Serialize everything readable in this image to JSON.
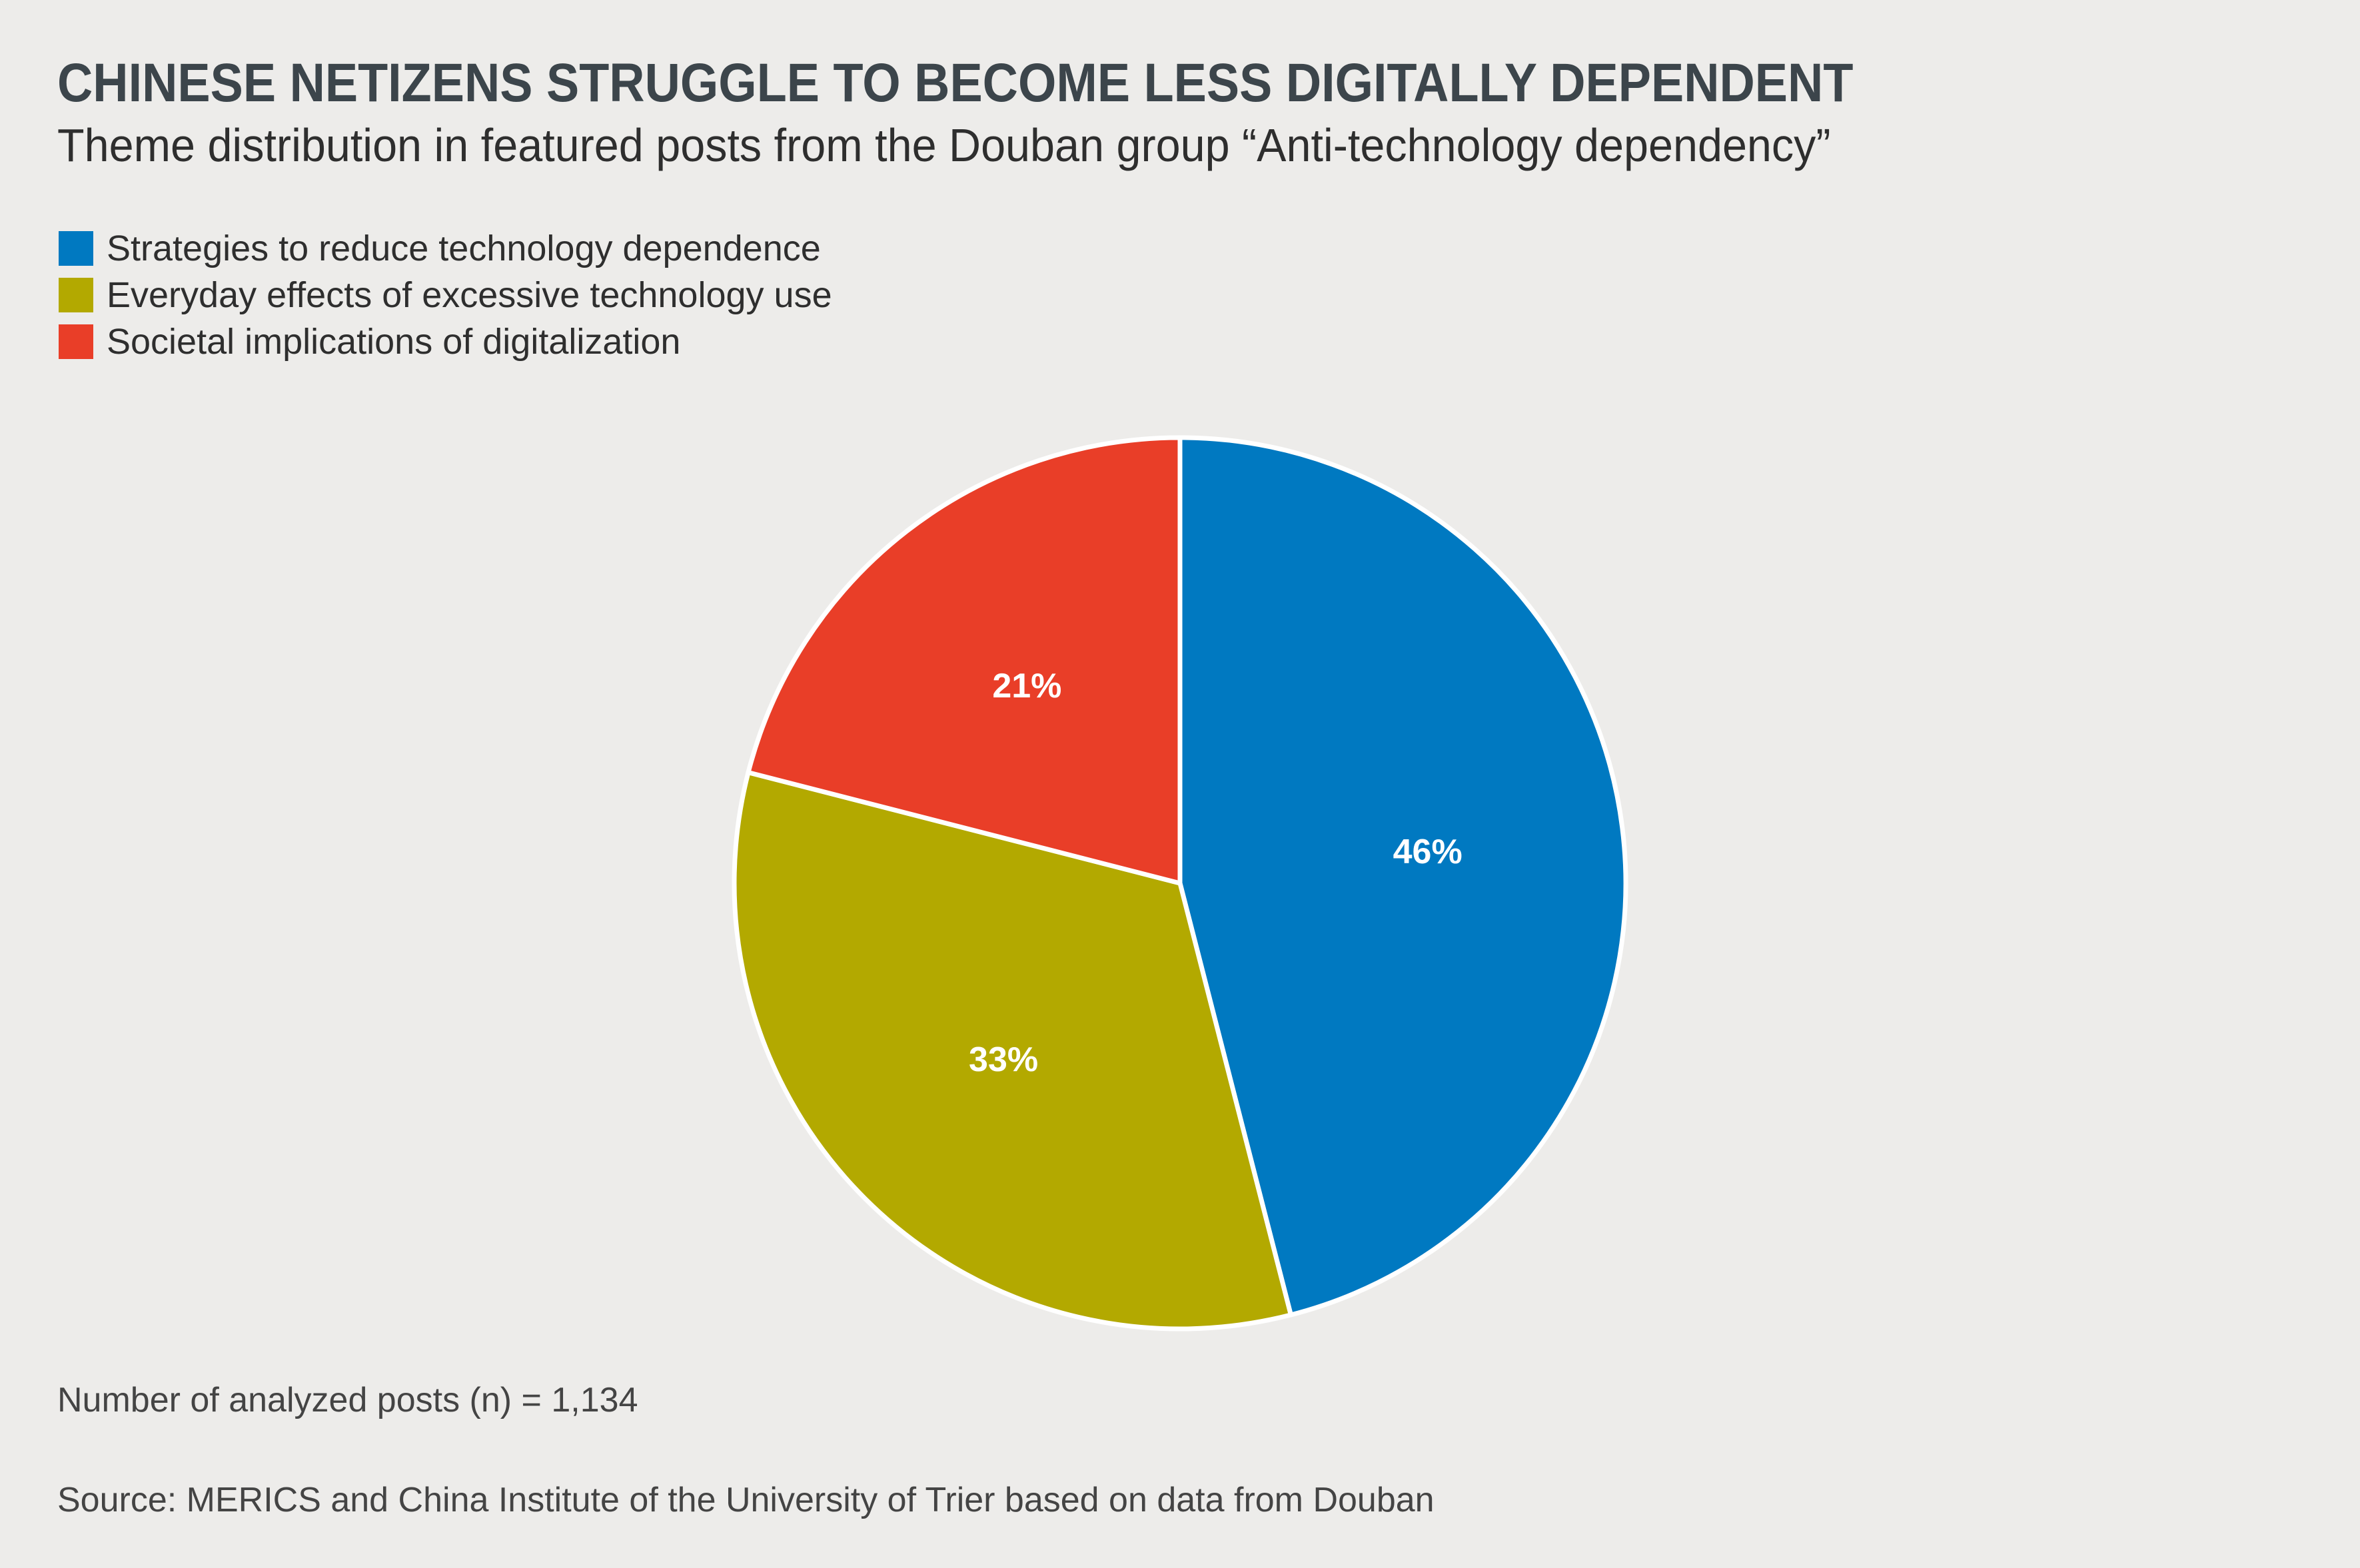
{
  "chart_data": {
    "type": "pie",
    "title": "CHINESE NETIZENS STRUGGLE TO BECOME LESS DIGITALLY DEPENDENT",
    "subtitle": "Theme distribution in featured posts from the Douban group “Anti-technology dependency”",
    "legend_position": "top-left",
    "slices": [
      {
        "name": "Strategies to reduce technology dependence",
        "value": 46,
        "label": "46%",
        "color": "#0079C1"
      },
      {
        "name": "Everyday effects of excessive technology use",
        "value": 33,
        "label": "33%",
        "color": "#B3A900"
      },
      {
        "name": "Societal implications of digitalization",
        "value": 21,
        "label": "21%",
        "color": "#E93E28"
      }
    ],
    "note": "Number of analyzed posts (n) = 1,134",
    "source": "Source: MERICS and China Institute of the University of Trier based on data from Douban"
  }
}
